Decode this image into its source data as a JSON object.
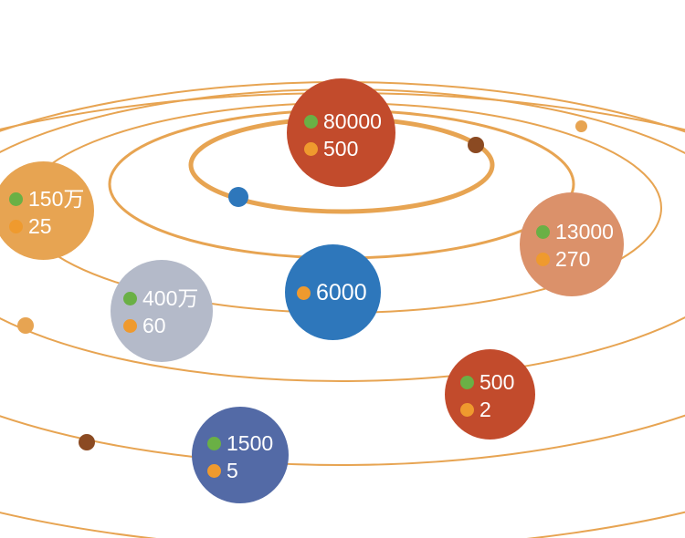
{
  "colors": {
    "orbit": "#e7a452",
    "metric_green": "#6ab045",
    "metric_orange": "#ef9a2e"
  },
  "planets": [
    {
      "id": "center",
      "color": "#2e77bb",
      "rows": [
        {
          "marker": "orange",
          "value": "6000"
        }
      ]
    },
    {
      "id": "top",
      "color": "#c24b2c",
      "rows": [
        {
          "marker": "green",
          "value": "80000"
        },
        {
          "marker": "orange",
          "value": "500"
        }
      ]
    },
    {
      "id": "right",
      "color": "#db916a",
      "rows": [
        {
          "marker": "green",
          "value": "13000"
        },
        {
          "marker": "orange",
          "value": "270"
        }
      ]
    },
    {
      "id": "left",
      "color": "#e7a452",
      "rows": [
        {
          "marker": "green",
          "value": "150万"
        },
        {
          "marker": "orange",
          "value": "25"
        }
      ]
    },
    {
      "id": "mid-left",
      "color": "#b4bac9",
      "rows": [
        {
          "marker": "green",
          "value": "400万"
        },
        {
          "marker": "orange",
          "value": "60"
        }
      ]
    },
    {
      "id": "lower-right",
      "color": "#c24b2c",
      "rows": [
        {
          "marker": "green",
          "value": "500"
        },
        {
          "marker": "orange",
          "value": "2"
        }
      ]
    },
    {
      "id": "bottom",
      "color": "#536aa6",
      "rows": [
        {
          "marker": "green",
          "value": "1500"
        },
        {
          "marker": "orange",
          "value": "5"
        }
      ]
    }
  ],
  "small_bodies": [
    {
      "id": "blue",
      "color": "#2e77bb"
    },
    {
      "id": "brown-top",
      "color": "#8b4a22"
    },
    {
      "id": "tan-top-right",
      "color": "#e7a452"
    },
    {
      "id": "tan-left",
      "color": "#e7a452"
    },
    {
      "id": "brown-bottom",
      "color": "#8b4a22"
    }
  ]
}
